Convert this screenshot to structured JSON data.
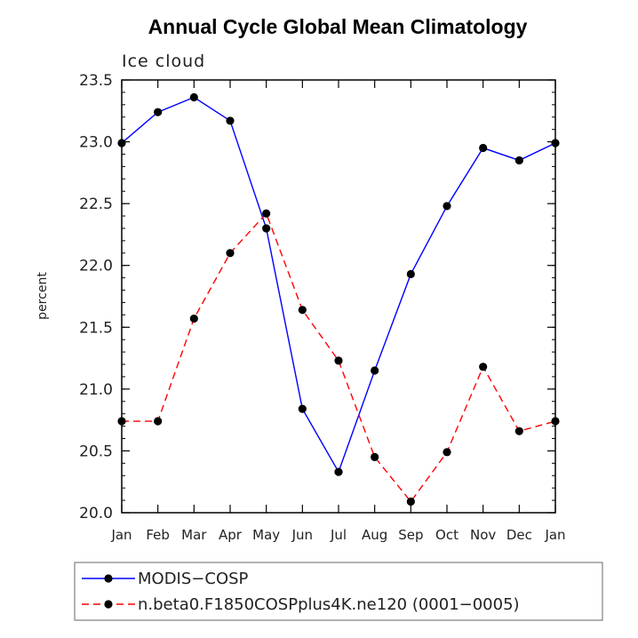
{
  "chart_data": {
    "type": "line",
    "title": "Annual Cycle Global Mean Climatology",
    "subtitle": "Ice cloud",
    "ylabel": "percent",
    "xlabel": "",
    "categories": [
      "Jan",
      "Feb",
      "Mar",
      "Apr",
      "May",
      "Jun",
      "Jul",
      "Aug",
      "Sep",
      "Oct",
      "Nov",
      "Dec",
      "Jan"
    ],
    "ylim": [
      20.0,
      23.5
    ],
    "yticks": [
      "20.0",
      "20.5",
      "21.0",
      "21.5",
      "22.0",
      "22.5",
      "23.0",
      "23.5"
    ],
    "grid": false,
    "legend_position": "bottom",
    "series": [
      {
        "name": "MODIS−COSP",
        "color": "#0000ff",
        "dash": "solid",
        "marker": "circle",
        "values": [
          22.99,
          23.24,
          23.36,
          23.17,
          22.3,
          20.84,
          20.33,
          21.15,
          21.93,
          22.48,
          22.95,
          22.85,
          22.99
        ]
      },
      {
        "name": "n.beta0.F1850COSPplus4K.ne120 (0001−0005)",
        "color": "#ff0000",
        "dash": "dashed",
        "marker": "circle",
        "values": [
          20.74,
          20.74,
          21.57,
          22.1,
          22.42,
          21.64,
          21.23,
          20.45,
          20.09,
          20.49,
          21.18,
          20.66,
          20.74
        ]
      }
    ]
  }
}
